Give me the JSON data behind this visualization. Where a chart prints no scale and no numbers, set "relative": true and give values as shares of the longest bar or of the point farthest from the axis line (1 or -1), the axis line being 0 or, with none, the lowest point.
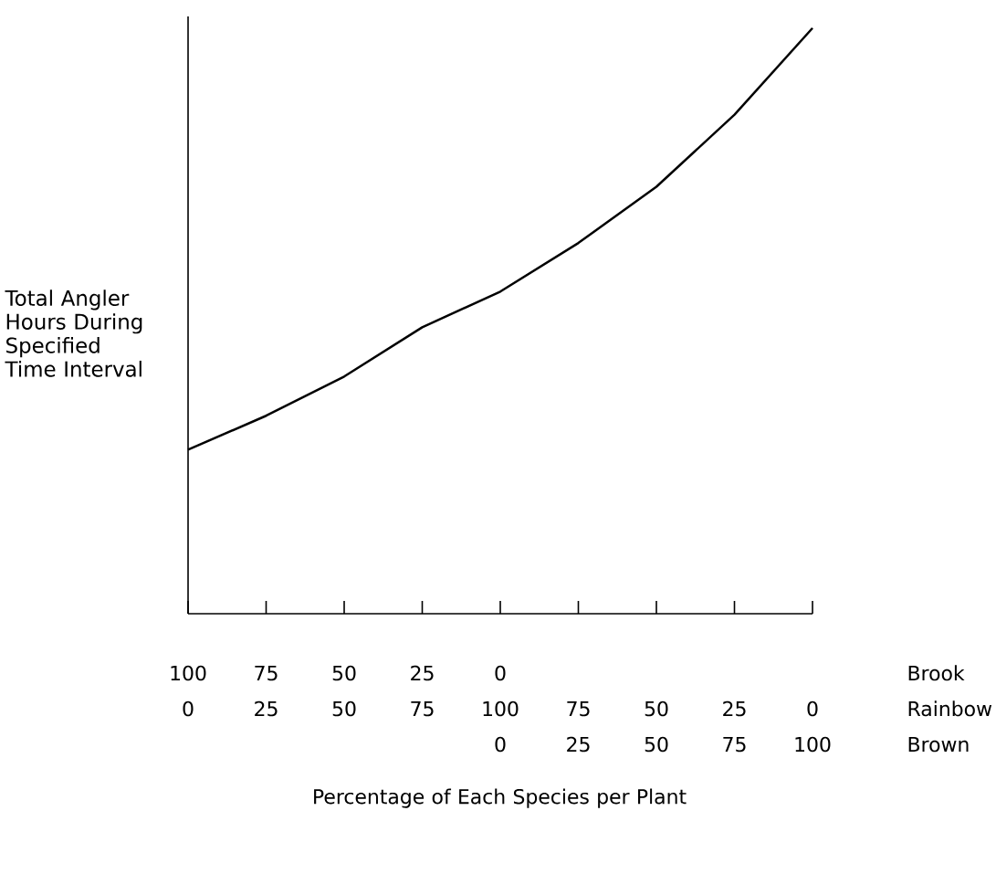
{
  "chart_data": {
    "type": "line",
    "relative": true,
    "color": "#000000",
    "ylabel": "Total Angler Hours During Specified Time Interval",
    "xlabel": "Percentage of Each Species per Plant",
    "categories": [
      "0",
      "25",
      "50",
      "75",
      "100",
      "75",
      "50",
      "25",
      "0"
    ],
    "values": [
      0.28,
      0.338,
      0.405,
      0.489,
      0.55,
      0.633,
      0.729,
      0.852,
      1
    ],
    "annotations": [
      "100",
      "75",
      "50",
      "25",
      "0",
      "Brook",
      "Rainbow",
      "0",
      "25",
      "50",
      "75",
      "100",
      "Brown"
    ]
  }
}
